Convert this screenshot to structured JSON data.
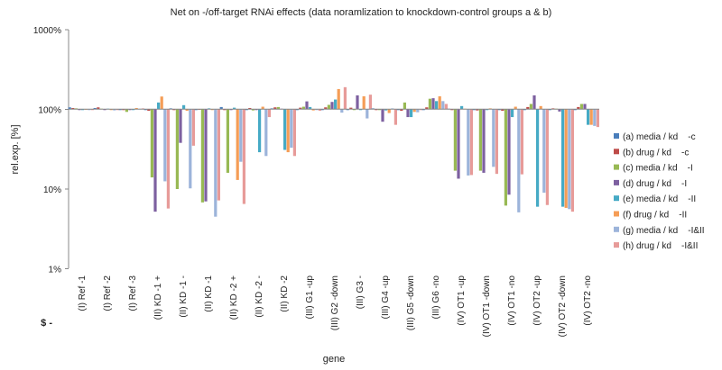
{
  "chart_data": {
    "type": "bar",
    "title": "Net on -/off-target RNAi effects (data noramlization to knockdown-control groups a & b)",
    "xlabel": "gene",
    "ylabel": "rel.exp. [%]",
    "yscale": "log",
    "ylim": [
      1,
      1000
    ],
    "yticks": [
      "1%",
      "10%",
      "100%",
      "1000%"
    ],
    "grid": false,
    "legend_position": "right",
    "row_marker": "$ -",
    "categories": [
      "(I) Ref  -1",
      "(I) Ref  -2",
      "(I) Ref  -3",
      "(II) KD  -1 +",
      "(II) KD  -1 -",
      "(II) KD  -1",
      "(II) KD  -2 +",
      "(II) KD  -2 -",
      "(II) KD  -2",
      "(III) G1  -up",
      "(III) G2  -down",
      "(III) G3  -",
      "(III) G4  -up",
      "(III) G5  -down",
      "(III) G6  -no",
      "(IV) OT1  -up",
      "(IV) OT1  -down",
      "(IV) OT1  -no",
      "(IV) OT2  -up",
      "(IV) OT2  -down",
      "(IV) OT2  -no"
    ],
    "series": [
      {
        "name": "(a) media / kd    -c",
        "color": "#4a7ebb",
        "values": [
          106,
          104,
          100,
          100,
          103,
          100,
          107,
          100,
          103,
          100,
          100,
          100,
          103,
          100,
          100,
          102,
          100,
          100,
          100,
          100,
          100
        ]
      },
      {
        "name": "(b) drug / kd    -c",
        "color": "#be4b48",
        "values": [
          104,
          106,
          100,
          96,
          100,
          101,
          100,
          104,
          106,
          105,
          106,
          105,
          100,
          96,
          106,
          100,
          97,
          96,
          107,
          103,
          107
        ]
      },
      {
        "name": "(c) media / kd    -I",
        "color": "#98b954",
        "values": [
          103,
          102,
          93,
          14,
          10,
          6.8,
          16,
          97,
          107,
          108,
          114,
          100,
          98,
          122,
          136,
          17,
          17,
          6.2,
          117,
          102,
          117
        ]
      },
      {
        "name": "(d) drug / kd    -I",
        "color": "#7d60a0",
        "values": [
          100,
          100,
          100,
          5.2,
          38,
          7,
          100,
          100,
          102,
          126,
          124,
          150,
          70,
          80,
          138,
          13.5,
          16,
          8.5,
          150,
          94,
          117
        ]
      },
      {
        "name": "(e) media / kd    -II",
        "color": "#46aac5",
        "values": [
          100,
          102,
          100,
          122,
          113,
          103,
          105,
          29,
          31,
          107,
          133,
          100,
          97,
          80,
          127,
          110,
          100,
          80,
          6,
          6,
          64
        ]
      },
      {
        "name": "(f) drug / kd    -II",
        "color": "#f59d56",
        "values": [
          101,
          100,
          104,
          145,
          96,
          100,
          13,
          108,
          29,
          97,
          180,
          146,
          90,
          93,
          146,
          102,
          103,
          108,
          110,
          5.8,
          64
        ]
      },
      {
        "name": "(g) media / kd    -I&II",
        "color": "#9cb4da",
        "values": [
          100,
          97,
          102,
          12.5,
          10.2,
          4.5,
          22,
          26,
          33,
          100,
          91,
          77,
          103,
          92,
          127,
          14.8,
          19,
          5.1,
          9,
          5.6,
          62
        ]
      },
      {
        "name": "(h) drug / kd    -I&II",
        "color": "#e79b99",
        "values": [
          98,
          98,
          103,
          5.7,
          35,
          7.2,
          6.5,
          80,
          26,
          96,
          190,
          153,
          64,
          99,
          117,
          15,
          15.5,
          15.3,
          6.3,
          5.2,
          60
        ]
      }
    ]
  }
}
